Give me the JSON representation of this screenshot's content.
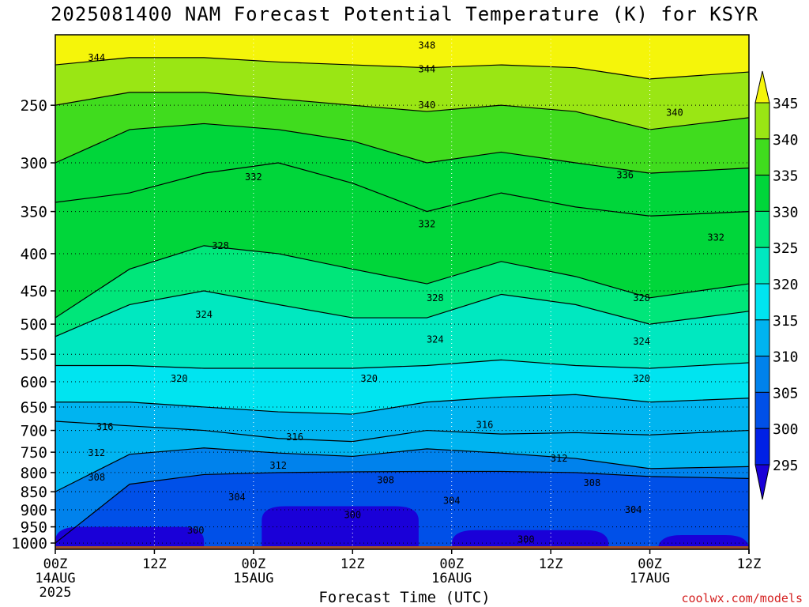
{
  "chart_data": {
    "type": "heatmap",
    "title": "2025081400 NAM Forecast Potential Temperature (K) for KSYR",
    "xlabel": "Forecast Time (UTC)",
    "ylabel": "",
    "credit": "coolwx.com/models",
    "y_axis": {
      "scale": "pressure (log, inverted)",
      "ticks": [
        250,
        300,
        350,
        400,
        450,
        500,
        550,
        600,
        650,
        700,
        750,
        800,
        850,
        900,
        950,
        1000
      ],
      "ylim": [
        1020,
        200
      ]
    },
    "x_axis": {
      "ticks": [
        {
          "hour": 0,
          "label": "00Z",
          "date": "14AUG",
          "year": "2025"
        },
        {
          "hour": 12,
          "label": "12Z",
          "date": "",
          "year": ""
        },
        {
          "hour": 24,
          "label": "00Z",
          "date": "15AUG",
          "year": ""
        },
        {
          "hour": 36,
          "label": "12Z",
          "date": "",
          "year": ""
        },
        {
          "hour": 48,
          "label": "00Z",
          "date": "16AUG",
          "year": ""
        },
        {
          "hour": 60,
          "label": "12Z",
          "date": "",
          "year": ""
        },
        {
          "hour": 72,
          "label": "00Z",
          "date": "17AUG",
          "year": ""
        },
        {
          "hour": 84,
          "label": "12Z",
          "date": "",
          "year": ""
        }
      ],
      "xlim": [
        0,
        84
      ]
    },
    "colorbar": {
      "levels": [
        295,
        300,
        305,
        310,
        315,
        320,
        325,
        330,
        335,
        340,
        345
      ],
      "labels": [
        "345",
        "340",
        "335",
        "330",
        "325",
        "320",
        "315",
        "310",
        "305",
        "300",
        "295"
      ],
      "colors": [
        "#1a00d8",
        "#0020e6",
        "#0050e8",
        "#0082ec",
        "#00b4f0",
        "#00e4f0",
        "#00e8c0",
        "#00e67a",
        "#00d63a",
        "#40dc1e",
        "#9ae614",
        "#f5f50a"
      ]
    },
    "series": [
      {
        "theta": 304,
        "pressures": [
          1000,
          830,
          805,
          800,
          798,
          797,
          797,
          800,
          810,
          815
        ]
      },
      {
        "theta": 308,
        "pressures": [
          850,
          755,
          740,
          752,
          760,
          742,
          752,
          765,
          790,
          785
        ]
      },
      {
        "theta": 312,
        "pressures": [
          680,
          690,
          700,
          718,
          725,
          700,
          708,
          705,
          710,
          700
        ]
      },
      {
        "theta": 316,
        "pressures": [
          640,
          640,
          650,
          660,
          665,
          640,
          630,
          625,
          640,
          632
        ]
      },
      {
        "theta": 320,
        "pressures": [
          570,
          570,
          575,
          575,
          575,
          570,
          560,
          570,
          575,
          565
        ]
      },
      {
        "theta": 324,
        "pressures": [
          520,
          470,
          450,
          470,
          490,
          490,
          455,
          470,
          500,
          480
        ]
      },
      {
        "theta": 328,
        "pressures": [
          490,
          420,
          390,
          400,
          420,
          440,
          410,
          430,
          460,
          440
        ]
      },
      {
        "theta": 332,
        "pressures": [
          340,
          330,
          310,
          300,
          320,
          350,
          330,
          345,
          355,
          350
        ]
      },
      {
        "theta": 336,
        "pressures": [
          300,
          270,
          265,
          270,
          280,
          300,
          290,
          300,
          310,
          305
        ]
      },
      {
        "theta": 340,
        "pressures": [
          250,
          240,
          240,
          245,
          250,
          255,
          250,
          255,
          270,
          260
        ]
      },
      {
        "theta": 344,
        "pressures": [
          220,
          215,
          215,
          218,
          220,
          222,
          220,
          222,
          230,
          225
        ]
      }
    ],
    "series_hours": [
      0,
      9,
      18,
      27,
      36,
      45,
      54,
      63,
      72,
      84
    ],
    "contour_labels": [
      {
        "text": "348",
        "hour": 45,
        "p": 207
      },
      {
        "text": "344",
        "hour": 5,
        "p": 215
      },
      {
        "text": "344",
        "hour": 45,
        "p": 223
      },
      {
        "text": "340",
        "hour": 45,
        "p": 250
      },
      {
        "text": "340",
        "hour": 75,
        "p": 256
      },
      {
        "text": "336",
        "hour": 69,
        "p": 312
      },
      {
        "text": "332",
        "hour": 24,
        "p": 314
      },
      {
        "text": "332",
        "hour": 45,
        "p": 364
      },
      {
        "text": "332",
        "hour": 80,
        "p": 380
      },
      {
        "text": "328",
        "hour": 20,
        "p": 390
      },
      {
        "text": "328",
        "hour": 46,
        "p": 460
      },
      {
        "text": "328",
        "hour": 71,
        "p": 460
      },
      {
        "text": "324",
        "hour": 18,
        "p": 485
      },
      {
        "text": "324",
        "hour": 46,
        "p": 525
      },
      {
        "text": "324",
        "hour": 71,
        "p": 528
      },
      {
        "text": "320",
        "hour": 15,
        "p": 594
      },
      {
        "text": "320",
        "hour": 38,
        "p": 594
      },
      {
        "text": "320",
        "hour": 71,
        "p": 594
      },
      {
        "text": "316",
        "hour": 6,
        "p": 692
      },
      {
        "text": "316",
        "hour": 29,
        "p": 715
      },
      {
        "text": "316",
        "hour": 52,
        "p": 688
      },
      {
        "text": "312",
        "hour": 5,
        "p": 752
      },
      {
        "text": "312",
        "hour": 27,
        "p": 782
      },
      {
        "text": "312",
        "hour": 61,
        "p": 765
      },
      {
        "text": "308",
        "hour": 5,
        "p": 812
      },
      {
        "text": "308",
        "hour": 40,
        "p": 819
      },
      {
        "text": "308",
        "hour": 65,
        "p": 827
      },
      {
        "text": "304",
        "hour": 22,
        "p": 865
      },
      {
        "text": "304",
        "hour": 48,
        "p": 875
      },
      {
        "text": "304",
        "hour": 70,
        "p": 900
      },
      {
        "text": "300",
        "hour": 36,
        "p": 915
      },
      {
        "text": "300",
        "hour": 17,
        "p": 960
      },
      {
        "text": "300",
        "hour": 57,
        "p": 988
      }
    ],
    "cold_pools": [
      {
        "h0": 0,
        "h1": 18,
        "ptop": 950
      },
      {
        "h0": 25,
        "h1": 44,
        "ptop": 890
      },
      {
        "h0": 48,
        "h1": 67,
        "ptop": 960
      },
      {
        "h0": 73,
        "h1": 84,
        "ptop": 975
      }
    ],
    "ground_p": 1010
  }
}
